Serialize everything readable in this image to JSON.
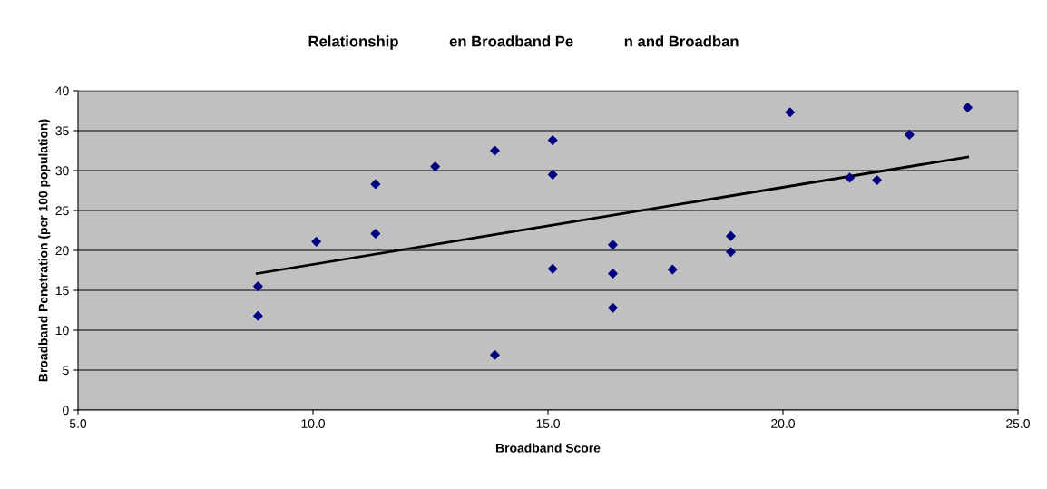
{
  "chart_data": {
    "type": "scatter",
    "title": "Relationship            en Broadband Pe            n and Broadban",
    "xlabel": "Broadband Score",
    "ylabel": "Broadband Penetration (per 100 population)",
    "xlim": [
      5,
      25
    ],
    "xticks": [
      {
        "value": 5,
        "label": "5.0"
      },
      {
        "value": 10,
        "label": "10.0"
      },
      {
        "value": 15,
        "label": "15.0"
      },
      {
        "value": 20,
        "label": "20.0"
      },
      {
        "value": 25,
        "label": "25.0"
      }
    ],
    "ylim": [
      0,
      40
    ],
    "yticks": [
      0,
      5,
      10,
      15,
      20,
      25,
      30,
      35,
      40
    ],
    "grid": "y",
    "series": [
      {
        "color": "#000080",
        "marker": "diamond",
        "x": [
          8.83,
          8.83,
          10.07,
          11.33,
          11.33,
          12.6,
          13.87,
          13.87,
          15.1,
          15.1,
          15.1,
          16.38,
          16.38,
          16.38,
          17.65,
          18.89,
          18.89,
          20.15,
          21.42,
          22.0,
          22.69,
          23.93
        ],
        "values": [
          11.8,
          15.5,
          21.1,
          28.3,
          22.1,
          30.5,
          32.5,
          6.9,
          33.8,
          29.5,
          17.7,
          20.7,
          17.1,
          12.8,
          17.6,
          21.8,
          19.8,
          37.3,
          29.1,
          28.8,
          34.5,
          37.9
        ]
      },
      {
        "type": "line",
        "color": "#000000",
        "marker": "none",
        "line_style": "solid",
        "x": [
          8.81,
          23.93
        ],
        "values": [
          17.1,
          31.7
        ]
      }
    ]
  }
}
